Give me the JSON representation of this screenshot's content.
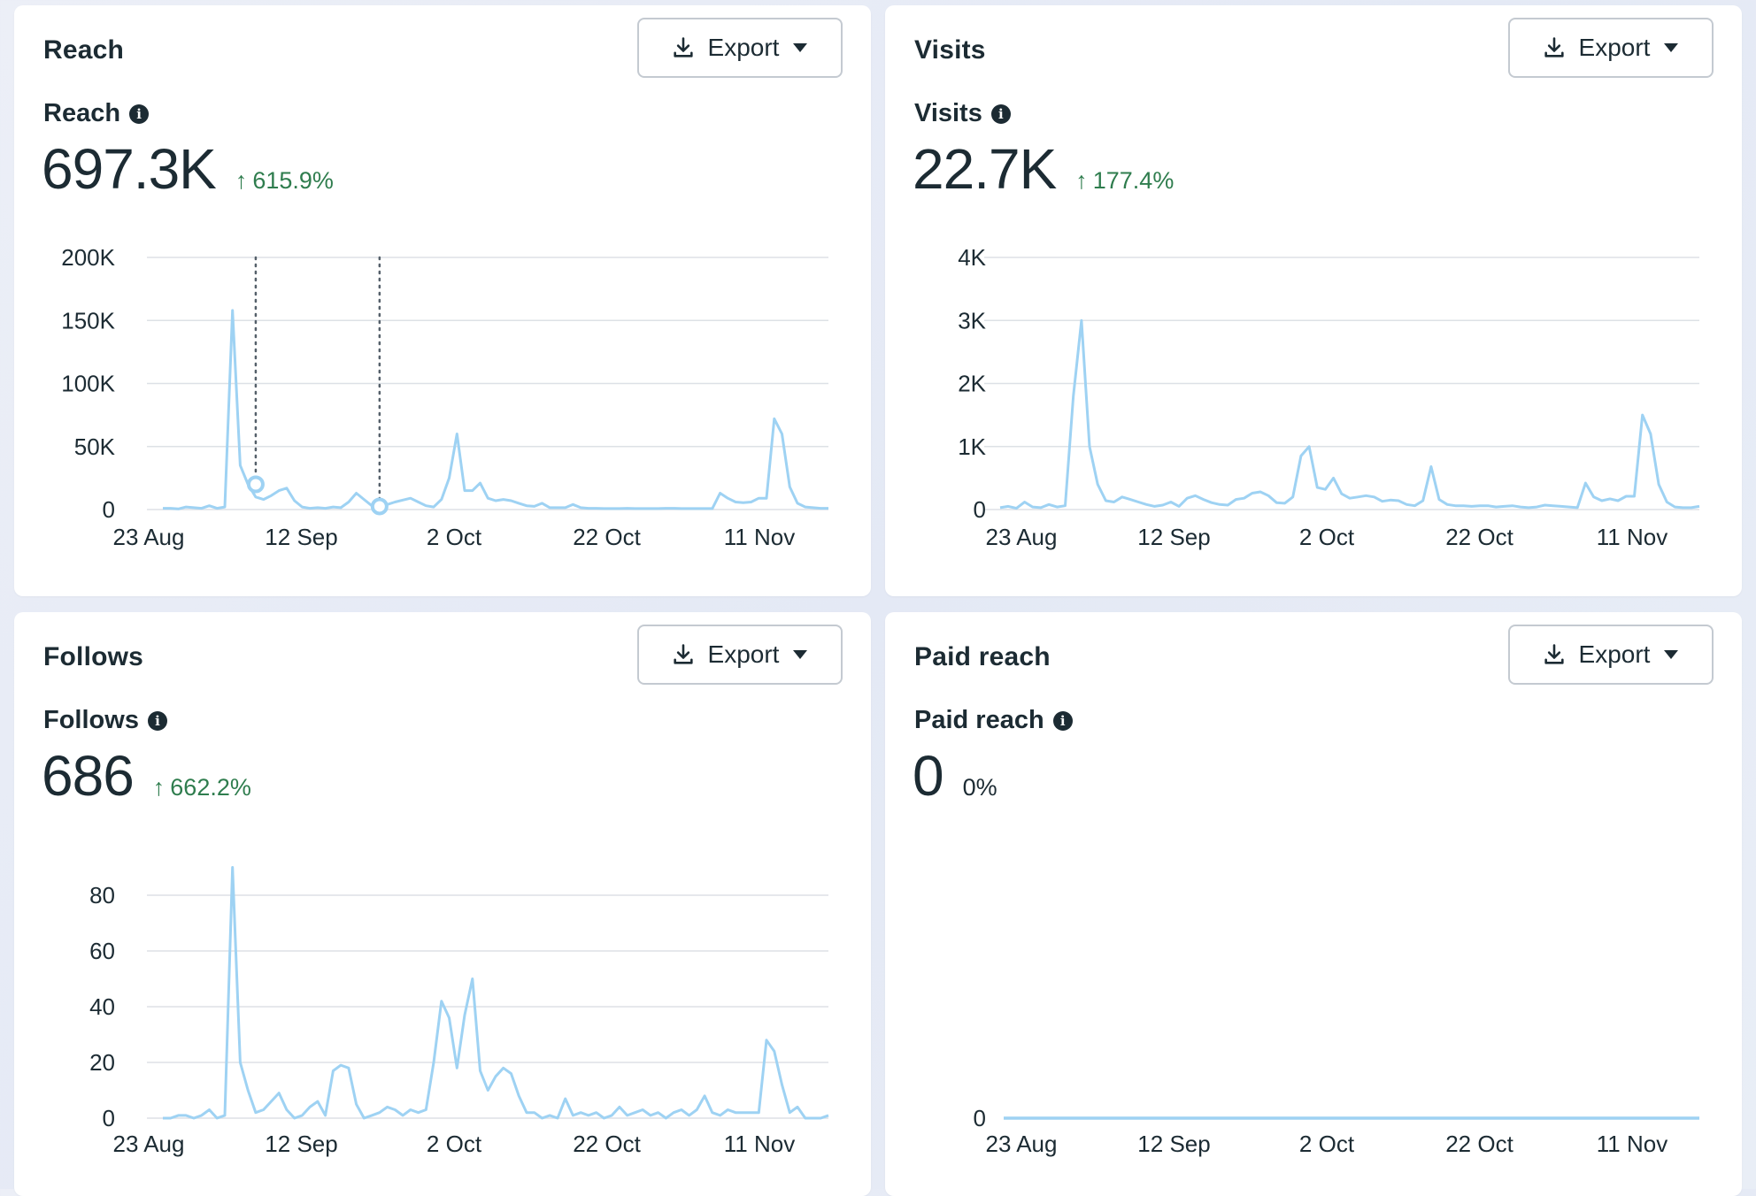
{
  "accent_line_color": "#9ed2f3",
  "cards": [
    {
      "title": "Reach",
      "export_label": "Export",
      "metric_label": "Reach",
      "metric_value": "697.3K",
      "change": "615.9%",
      "change_direction": "up"
    },
    {
      "title": "Visits",
      "export_label": "Export",
      "metric_label": "Visits",
      "metric_value": "22.7K",
      "change": "177.4%",
      "change_direction": "up"
    },
    {
      "title": "Follows",
      "export_label": "Export",
      "metric_label": "Follows",
      "metric_value": "686",
      "change": "662.2%",
      "change_direction": "up"
    },
    {
      "title": "Paid reach",
      "export_label": "Export",
      "metric_label": "Paid reach",
      "metric_value": "0",
      "change": "0%",
      "change_direction": "none"
    }
  ],
  "chart_data": [
    {
      "type": "line",
      "title": "Reach",
      "x_tick_labels": [
        "23 Aug",
        "12 Sep",
        "2 Oct",
        "22 Oct",
        "11 Nov"
      ],
      "y_tick_labels": [
        "0",
        "50K",
        "100K",
        "150K",
        "200K"
      ],
      "ylim": [
        0,
        200000
      ],
      "highlighted_points": [
        {
          "day": 12,
          "value": 20000
        },
        {
          "day": 28,
          "value": 2500
        }
      ],
      "series": [
        {
          "name": "Reach",
          "values": [
            1000,
            1000,
            500,
            2000,
            1500,
            1000,
            3000,
            1000,
            2000,
            158000,
            35000,
            20000,
            10000,
            8000,
            11000,
            15000,
            17000,
            7000,
            2000,
            1000,
            1500,
            1000,
            2000,
            1500,
            6000,
            13000,
            8000,
            3000,
            2500,
            4000,
            6000,
            7500,
            9000,
            6000,
            3000,
            2000,
            8000,
            25000,
            60000,
            15000,
            15000,
            21000,
            9000,
            7000,
            8000,
            7000,
            5000,
            3000,
            2500,
            5000,
            1500,
            1500,
            1500,
            4000,
            1500,
            1000,
            1000,
            800,
            800,
            800,
            1000,
            800,
            800,
            800,
            800,
            1000,
            1000,
            800,
            800,
            800,
            800,
            800,
            13000,
            9000,
            6000,
            5500,
            6000,
            9000,
            9000,
            72000,
            60000,
            18000,
            5000,
            2000,
            1500,
            1000,
            1000
          ]
        }
      ]
    },
    {
      "type": "line",
      "title": "Visits",
      "x_tick_labels": [
        "23 Aug",
        "12 Sep",
        "2 Oct",
        "22 Oct",
        "11 Nov"
      ],
      "y_tick_labels": [
        "0",
        "1K",
        "2K",
        "3K",
        "4K"
      ],
      "ylim": [
        0,
        4000
      ],
      "series": [
        {
          "name": "Visits",
          "values": [
            30,
            50,
            20,
            120,
            40,
            30,
            80,
            40,
            60,
            1800,
            3000,
            1000,
            400,
            140,
            120,
            200,
            160,
            120,
            80,
            50,
            70,
            120,
            50,
            180,
            220,
            160,
            110,
            80,
            70,
            160,
            180,
            260,
            280,
            220,
            110,
            100,
            200,
            850,
            1000,
            350,
            320,
            500,
            250,
            180,
            200,
            220,
            200,
            130,
            150,
            140,
            80,
            60,
            140,
            680,
            160,
            80,
            60,
            60,
            50,
            60,
            60,
            40,
            50,
            60,
            40,
            30,
            40,
            70,
            60,
            50,
            40,
            30,
            420,
            200,
            140,
            170,
            140,
            210,
            210,
            1500,
            1200,
            400,
            120,
            40,
            30,
            30,
            50
          ]
        }
      ]
    },
    {
      "type": "line",
      "title": "Follows",
      "x_tick_labels": [
        "23 Aug",
        "12 Sep",
        "2 Oct",
        "22 Oct",
        "11 Nov"
      ],
      "y_tick_labels": [
        "0",
        "20",
        "40",
        "60",
        "80"
      ],
      "ylim": [
        0,
        80
      ],
      "series": [
        {
          "name": "Follows",
          "values": [
            0,
            0,
            1,
            1,
            0,
            1,
            3,
            0,
            1,
            90,
            20,
            10,
            2,
            3,
            6,
            9,
            3,
            0,
            1,
            4,
            6,
            1,
            17,
            19,
            18,
            5,
            0,
            1,
            2,
            4,
            3,
            1,
            3,
            2,
            3,
            20,
            42,
            36,
            18,
            37,
            50,
            17,
            10,
            15,
            18,
            16,
            8,
            2,
            2,
            0,
            1,
            0,
            7,
            1,
            2,
            1,
            2,
            0,
            1,
            4,
            1,
            2,
            3,
            1,
            2,
            0,
            2,
            3,
            1,
            3,
            8,
            2,
            1,
            3,
            2,
            2,
            2,
            2,
            28,
            24,
            12,
            2,
            4,
            0,
            0,
            0,
            1
          ]
        }
      ]
    },
    {
      "type": "line",
      "title": "Paid reach",
      "x_tick_labels": [
        "23 Aug",
        "12 Sep",
        "2 Oct",
        "22 Oct",
        "11 Nov"
      ],
      "y_tick_labels": [
        "0"
      ],
      "ylim": [
        0,
        1
      ],
      "series": [
        {
          "name": "Paid reach",
          "values": [
            0,
            0,
            0,
            0,
            0,
            0,
            0,
            0,
            0,
            0,
            0,
            0,
            0,
            0,
            0,
            0,
            0,
            0,
            0,
            0,
            0,
            0,
            0,
            0,
            0,
            0,
            0,
            0,
            0,
            0,
            0,
            0,
            0,
            0,
            0,
            0,
            0,
            0,
            0,
            0,
            0,
            0,
            0,
            0,
            0,
            0,
            0,
            0,
            0,
            0,
            0,
            0,
            0,
            0,
            0,
            0,
            0,
            0,
            0,
            0,
            0,
            0,
            0,
            0,
            0,
            0,
            0,
            0,
            0,
            0,
            0,
            0,
            0,
            0,
            0,
            0,
            0,
            0,
            0,
            0,
            0,
            0,
            0,
            0,
            0,
            0,
            0
          ]
        }
      ]
    }
  ]
}
